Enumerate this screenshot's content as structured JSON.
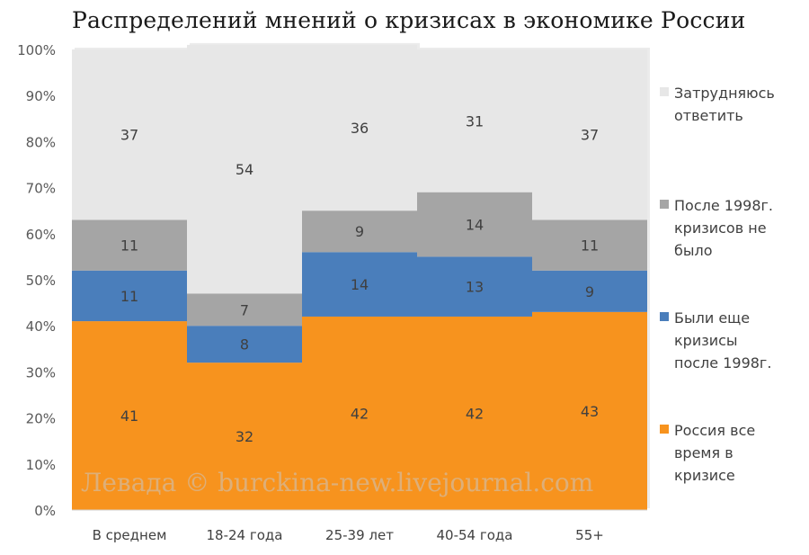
{
  "chart_data": {
    "type": "bar",
    "stacked": true,
    "title": "Распределений мнений о кризисах в экономике России",
    "categories": [
      "В среднем",
      "18-24 года",
      "25-39 лет",
      "40-54 года",
      "55+"
    ],
    "series": [
      {
        "name": "Россия все время в кризисе",
        "color": "#f7931e",
        "values": [
          41,
          32,
          42,
          42,
          43
        ]
      },
      {
        "name": "Были еще кризисы после 1998г.",
        "color": "#4a7ebb",
        "values": [
          11,
          8,
          14,
          13,
          9
        ]
      },
      {
        "name": "После 1998г. кризисов не было",
        "color": "#a5a5a5",
        "values": [
          11,
          7,
          9,
          14,
          11
        ]
      },
      {
        "name": "Затрудняюсь ответить",
        "color": "#e7e7e7",
        "values": [
          37,
          54,
          36,
          31,
          37
        ]
      }
    ],
    "ylim": [
      0,
      100
    ],
    "yticks": [
      "0%",
      "10%",
      "20%",
      "30%",
      "40%",
      "50%",
      "60%",
      "70%",
      "80%",
      "90%",
      "100%"
    ],
    "legend_position": "right",
    "legend": [
      {
        "lines": [
          "Затрудняюсь",
          "ответить"
        ],
        "color": "#e7e7e7"
      },
      {
        "lines": [
          "После 1998г.",
          "кризисов не",
          "было"
        ],
        "color": "#a5a5a5"
      },
      {
        "lines": [
          "Были еще",
          "кризисы",
          "после 1998г."
        ],
        "color": "#4a7ebb"
      },
      {
        "lines": [
          "Россия все",
          "время в",
          "кризисе"
        ],
        "color": "#f7931e"
      }
    ]
  },
  "watermark": "Левада © burckina-new.livejournal.com"
}
